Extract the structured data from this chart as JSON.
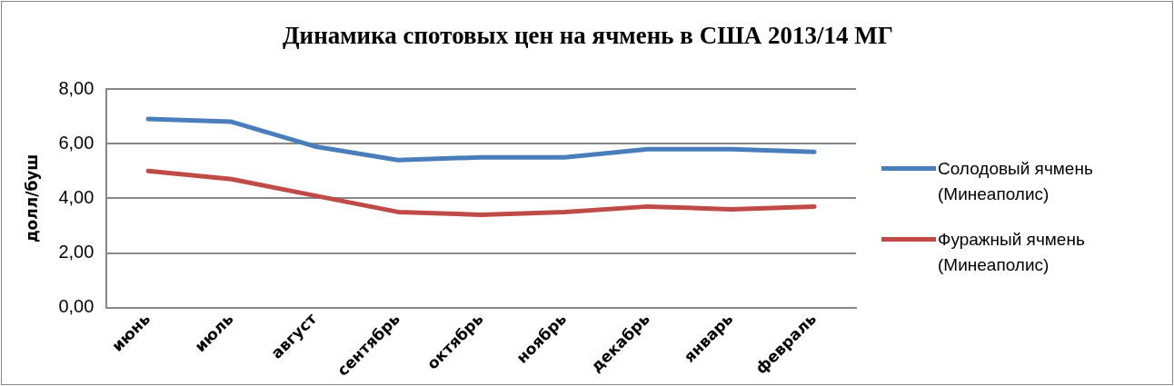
{
  "chart_data": {
    "type": "line",
    "title": "Динамика спотовых цен на ячмень в США 2013/14 МГ",
    "ylabel": "долл/буш",
    "categories": [
      "июнь",
      "июль",
      "август",
      "сентябрь",
      "октябрь",
      "ноябрь",
      "декабрь",
      "январь",
      "февраль"
    ],
    "series": [
      {
        "name": "Солодовый ячмень (Минеаполис)",
        "color": "#4a7ebb",
        "values": [
          6.9,
          6.8,
          5.9,
          5.4,
          5.5,
          5.5,
          5.8,
          5.8,
          5.7
        ]
      },
      {
        "name": "Фуражный ячмень (Минеаполис)",
        "color": "#be4b48",
        "values": [
          5.0,
          4.7,
          4.1,
          3.5,
          3.4,
          3.5,
          3.7,
          3.6,
          3.7
        ]
      }
    ],
    "ylim": [
      0,
      8
    ],
    "yticks": [
      {
        "value": 0,
        "label": "0,00"
      },
      {
        "value": 2,
        "label": "2,00"
      },
      {
        "value": 4,
        "label": "4,00"
      },
      {
        "value": 6,
        "label": "6,00"
      },
      {
        "value": 8,
        "label": "8,00"
      }
    ],
    "grid": "y",
    "legend": "right",
    "marker": "none",
    "line_style": "solid"
  }
}
